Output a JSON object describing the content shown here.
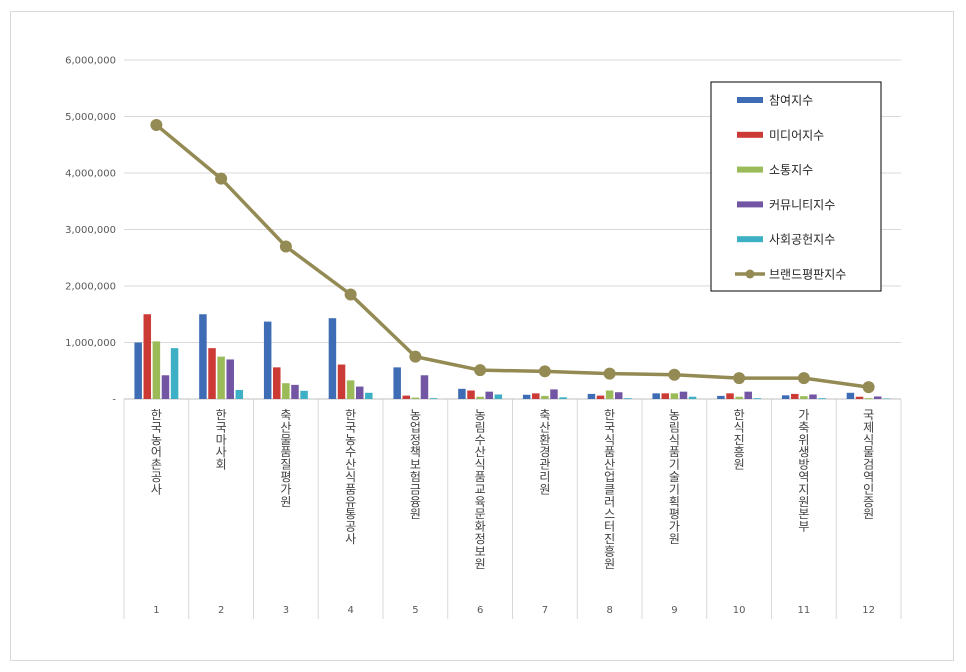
{
  "chart_data": {
    "type": "bar",
    "categories": [
      "한국농어촌공사",
      "한국마사회",
      "축산물품질평가원",
      "한국농수산식품유통공사",
      "농업정책보험금융원",
      "농림수산식품교육문화정보원",
      "축산환경관리원",
      "한국식품산업클러스터진흥원",
      "농림식품기술기획평가원",
      "한식진흥원",
      "가축위생방역지원본부",
      "국제식물검역인증원"
    ],
    "ranks": [
      "1",
      "2",
      "3",
      "4",
      "5",
      "6",
      "7",
      "8",
      "9",
      "10",
      "11",
      "12"
    ],
    "yticks": [
      "-",
      "1,000,000",
      "2,000,000",
      "3,000,000",
      "4,000,000",
      "5,000,000",
      "6,000,000"
    ],
    "ylim": [
      0,
      6000000
    ],
    "grid": true,
    "legend_position": "top-right",
    "series": [
      {
        "name": "참여지수",
        "type": "bar",
        "color": "#3e6db5",
        "values": [
          1000000,
          1500000,
          1370000,
          1430000,
          560000,
          180000,
          75000,
          90000,
          100000,
          55000,
          65000,
          110000
        ]
      },
      {
        "name": "미디어지수",
        "type": "bar",
        "color": "#cc3a36",
        "values": [
          1500000,
          900000,
          560000,
          610000,
          60000,
          150000,
          100000,
          60000,
          100000,
          100000,
          90000,
          40000
        ]
      },
      {
        "name": "소통지수",
        "type": "bar",
        "color": "#9bbb59",
        "values": [
          1020000,
          750000,
          280000,
          330000,
          25000,
          40000,
          55000,
          150000,
          100000,
          40000,
          50000,
          15000
        ]
      },
      {
        "name": "커뮤니티지수",
        "type": "bar",
        "color": "#7356a3",
        "values": [
          420000,
          700000,
          250000,
          220000,
          420000,
          130000,
          170000,
          120000,
          130000,
          130000,
          80000,
          45000
        ]
      },
      {
        "name": "사회공헌지수",
        "type": "bar",
        "color": "#3eb0c6",
        "values": [
          900000,
          160000,
          145000,
          110000,
          15000,
          80000,
          30000,
          15000,
          40000,
          15000,
          15000,
          10000
        ]
      },
      {
        "name": "브랜드평판지수",
        "type": "line",
        "color": "#948a54",
        "values": [
          4850000,
          3900000,
          2700000,
          1850000,
          750000,
          510000,
          490000,
          450000,
          430000,
          370000,
          370000,
          210000
        ]
      }
    ]
  }
}
